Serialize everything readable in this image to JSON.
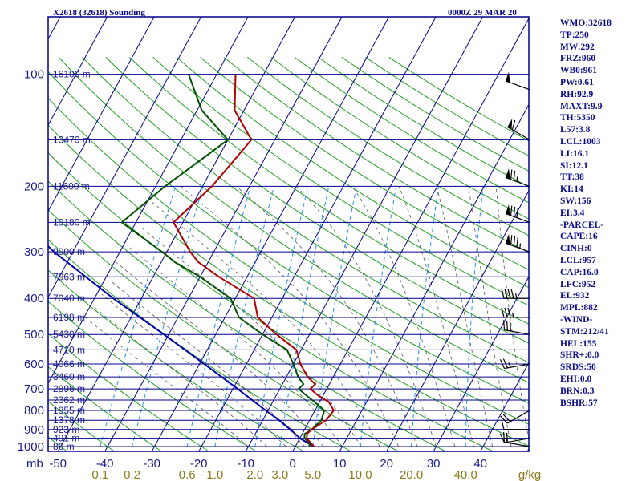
{
  "header": {
    "station": "X2618 (32618) Sounding",
    "time": "0000Z 29 MAR 20"
  },
  "side_stats": [
    "WMO:32618",
    "TP:250",
    "MW:292",
    "FRZ:960",
    "WB0:961",
    "PW:0.61",
    "RH:92.9",
    "MAXT:9.9",
    "TH:5350",
    "L57:3.8",
    "LCL:1003",
    "LI:16.1",
    "SI:12.1",
    "TT:38",
    "KI:14",
    "SW:156",
    "EI:3.4",
    "-PARCEL-",
    "CAPE:16",
    "CINH:0",
    "LCL:957",
    "CAP:16.0",
    "LFC:952",
    "EL:932",
    "MPL:882",
    "-WIND-",
    "STM:212/41",
    "HEL:155",
    "SHR+:0.0",
    "SRDS:50",
    "EHI:0.0",
    "BRN:0.3",
    "BSHR:57"
  ],
  "colors": {
    "frame": "#00008b",
    "isobar": "#00008b",
    "isotherm": "#00008b",
    "dry_adiabat": "#20a020",
    "mixing_ratio": "#1e90ff",
    "moist_adiabat": "#555555",
    "temperature": "#b00000",
    "dewpoint": "#005000",
    "parcel": "#0000aa",
    "label": "#1a1a8a",
    "mixing_label": "#8a7a1a"
  },
  "chart_data": {
    "type": "skew-t",
    "pressure_unit": "mb",
    "temperature_unit": "C",
    "pressure_ticks": [
      {
        "p": 100,
        "label": "100"
      },
      {
        "p": 200,
        "label": "200"
      },
      {
        "p": 300,
        "label": "300"
      },
      {
        "p": 400,
        "label": "400"
      },
      {
        "p": 500,
        "label": "500"
      },
      {
        "p": 600,
        "label": "600"
      },
      {
        "p": 700,
        "label": "700"
      },
      {
        "p": 800,
        "label": "800"
      },
      {
        "p": 900,
        "label": "900"
      },
      {
        "p": 1000,
        "label": "1000"
      }
    ],
    "height_labels": [
      {
        "p": 100,
        "label": "16100 m"
      },
      {
        "p": 150,
        "label": "13470 m"
      },
      {
        "p": 200,
        "label": "11600 m"
      },
      {
        "p": 250,
        "label": "10180 m"
      },
      {
        "p": 300,
        "label": "9000 m"
      },
      {
        "p": 350,
        "label": "7963 m"
      },
      {
        "p": 400,
        "label": "7040 m"
      },
      {
        "p": 450,
        "label": "6198 m"
      },
      {
        "p": 500,
        "label": "5430 m"
      },
      {
        "p": 550,
        "label": "4710 m"
      },
      {
        "p": 600,
        "label": "4066 m"
      },
      {
        "p": 650,
        "label": "3460 m"
      },
      {
        "p": 700,
        "label": "2896 m"
      },
      {
        "p": 750,
        "label": "2362 m"
      },
      {
        "p": 800,
        "label": "1855 m"
      },
      {
        "p": 850,
        "label": "1378 m"
      },
      {
        "p": 900,
        "label": "923 m"
      },
      {
        "p": 950,
        "label": "491 m"
      },
      {
        "p": 1000,
        "label": "80 m"
      }
    ],
    "temperature_axis": {
      "mb_label": "mb",
      "ticks": [
        {
          "t": -50,
          "label": "-50"
        },
        {
          "t": -40,
          "label": "-40"
        },
        {
          "t": -30,
          "label": "-30"
        },
        {
          "t": -20,
          "label": "-20"
        },
        {
          "t": -10,
          "label": "-10"
        },
        {
          "t": 0,
          "label": "0"
        },
        {
          "t": 10,
          "label": "10"
        },
        {
          "t": 20,
          "label": "20"
        },
        {
          "t": 30,
          "label": "30"
        },
        {
          "t": 40,
          "label": "40"
        }
      ]
    },
    "mixing_ratio_axis": {
      "unit": "g/kg",
      "ticks": [
        {
          "w": 0.1,
          "label": "0.1"
        },
        {
          "w": 0.2,
          "label": "0.2"
        },
        {
          "w": 0.6,
          "label": "0.6"
        },
        {
          "w": 1.0,
          "label": "1.0"
        },
        {
          "w": 2.0,
          "label": "2.0"
        },
        {
          "w": 3.0,
          "label": "3.0"
        },
        {
          "w": 5.0,
          "label": "5.0"
        },
        {
          "w": 10.0,
          "label": "10.0"
        },
        {
          "w": 20.0,
          "label": "20.0"
        },
        {
          "w": 40.0,
          "label": "40.0"
        }
      ]
    },
    "temperature_profile": [
      {
        "p": 1000,
        "t": 4.0
      },
      {
        "p": 975,
        "t": 2.7
      },
      {
        "p": 950,
        "t": 1.5
      },
      {
        "p": 925,
        "t": 1.0
      },
      {
        "p": 900,
        "t": 1.5
      },
      {
        "p": 850,
        "t": 3.5
      },
      {
        "p": 800,
        "t": 4.0
      },
      {
        "p": 760,
        "t": 2.0
      },
      {
        "p": 730,
        "t": -1.0
      },
      {
        "p": 700,
        "t": -3.5
      },
      {
        "p": 680,
        "t": -3.0
      },
      {
        "p": 650,
        "t": -5.5
      },
      {
        "p": 600,
        "t": -8.5
      },
      {
        "p": 550,
        "t": -11.0
      },
      {
        "p": 500,
        "t": -17.0
      },
      {
        "p": 450,
        "t": -23.0
      },
      {
        "p": 400,
        "t": -26.0
      },
      {
        "p": 350,
        "t": -36.0
      },
      {
        "p": 320,
        "t": -42.0
      },
      {
        "p": 300,
        "t": -45.0
      },
      {
        "p": 250,
        "t": -52.0
      },
      {
        "p": 200,
        "t": -48.0
      },
      {
        "p": 150,
        "t": -45.0
      },
      {
        "p": 125,
        "t": -52.0
      },
      {
        "p": 100,
        "t": -56.0
      }
    ],
    "dewpoint_profile": [
      {
        "p": 1000,
        "t": 3.0
      },
      {
        "p": 975,
        "t": 2.5
      },
      {
        "p": 950,
        "t": 1.0
      },
      {
        "p": 925,
        "t": 0.5
      },
      {
        "p": 900,
        "t": 1.5
      },
      {
        "p": 850,
        "t": 2.5
      },
      {
        "p": 800,
        "t": 2.0
      },
      {
        "p": 760,
        "t": -1.0
      },
      {
        "p": 730,
        "t": -3.5
      },
      {
        "p": 700,
        "t": -6.0
      },
      {
        "p": 680,
        "t": -5.5
      },
      {
        "p": 650,
        "t": -7.5
      },
      {
        "p": 600,
        "t": -10.0
      },
      {
        "p": 550,
        "t": -13.0
      },
      {
        "p": 500,
        "t": -20.0
      },
      {
        "p": 450,
        "t": -27.0
      },
      {
        "p": 400,
        "t": -31.0
      },
      {
        "p": 350,
        "t": -40.0
      },
      {
        "p": 320,
        "t": -47.0
      },
      {
        "p": 300,
        "t": -51.0
      },
      {
        "p": 250,
        "t": -63.0
      },
      {
        "p": 200,
        "t": -58.0
      },
      {
        "p": 150,
        "t": -50.0
      },
      {
        "p": 125,
        "t": -59.0
      },
      {
        "p": 100,
        "t": -66.0
      }
    ],
    "parcel_profile": [
      {
        "p": 1000,
        "t": 4.0
      },
      {
        "p": 950,
        "t": 0.0
      },
      {
        "p": 900,
        "t": -3.0
      },
      {
        "p": 850,
        "t": -6.5
      },
      {
        "p": 800,
        "t": -10.5
      },
      {
        "p": 700,
        "t": -19.0
      },
      {
        "p": 600,
        "t": -29.0
      },
      {
        "p": 500,
        "t": -41.0
      },
      {
        "p": 400,
        "t": -56.0
      },
      {
        "p": 300,
        "t": -74.0
      },
      {
        "p": 250,
        "t": -84.0
      },
      {
        "p": 200,
        "t": -96.0
      },
      {
        "p": 150,
        "t": -110.0
      },
      {
        "p": 100,
        "t": -130.0
      }
    ],
    "wind_barbs": [
      {
        "p": 110,
        "dir": 290,
        "spd": 50
      },
      {
        "p": 150,
        "dir": 300,
        "spd": 60
      },
      {
        "p": 200,
        "dir": 290,
        "spd": 75
      },
      {
        "p": 250,
        "dir": 290,
        "spd": 80
      },
      {
        "p": 300,
        "dir": 290,
        "spd": 85
      },
      {
        "p": 400,
        "dir": 270,
        "spd": 45
      },
      {
        "p": 450,
        "dir": 270,
        "spd": 35
      },
      {
        "p": 500,
        "dir": 280,
        "spd": 30
      },
      {
        "p": 600,
        "dir": 260,
        "spd": 25
      },
      {
        "p": 800,
        "dir": 240,
        "spd": 20
      },
      {
        "p": 900,
        "dir": 270,
        "spd": 10
      },
      {
        "p": 950,
        "dir": 260,
        "spd": 15
      },
      {
        "p": 1000,
        "dir": 280,
        "spd": 20
      }
    ]
  }
}
